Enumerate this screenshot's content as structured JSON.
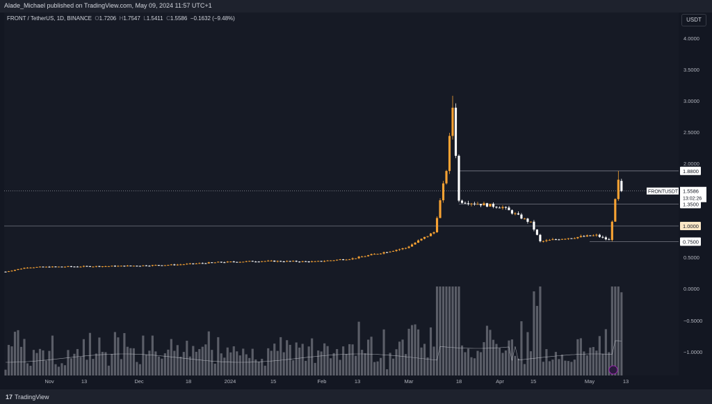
{
  "publisher_line": "Alade_Michael published on TradingView.com, May 09, 2024 11:57 UTC+1",
  "legend": {
    "symbol": "FRONT / TetherUS, 1D, BINANCE",
    "o_label": "O",
    "o": "1.7206",
    "h_label": "H",
    "h": "1.7547",
    "l_label": "L",
    "l": "1.5411",
    "c_label": "C",
    "c": "1.5586",
    "change": "−0.1632 (−9.48%)"
  },
  "currency_button": "USDT",
  "price_axis": {
    "ticks": [
      "4.0000",
      "3.5000",
      "3.0000",
      "2.5000",
      "2.0000",
      "1.5000",
      "1.0000",
      "0.5000"
    ],
    "volume_ticks": [
      "0.0000",
      "−0.5000",
      "−1.0000"
    ]
  },
  "time_axis": [
    "Nov",
    "13",
    "Dec",
    "18",
    "2024",
    "15",
    "Feb",
    "13",
    "Mar",
    "18",
    "Apr",
    "15",
    "May",
    "13"
  ],
  "price_labels": {
    "level_1": "1.8800",
    "symbol_tag": "FRONTUSDT",
    "current": "1.5586",
    "countdown": "13:02:26",
    "level_2": "1.3500",
    "level_3": "1.0000",
    "level_4": "0.7500"
  },
  "footer": {
    "brand": "TradingView"
  },
  "colors": {
    "up": "#f7a233",
    "down": "#ffffff",
    "background": "#161a25",
    "volume": "#9598a1"
  },
  "chart_data": {
    "type": "candlestick",
    "levels": [
      1.88,
      1.35,
      1.0,
      0.75
    ],
    "current_price": 1.5586,
    "ylim": [
      0.0,
      4.2
    ],
    "anchor_points": [
      [
        "Oct 25",
        0.27
      ],
      [
        "Nov 1",
        0.34
      ],
      [
        "Nov 13",
        0.35
      ],
      [
        "Dec 1",
        0.36
      ],
      [
        "Dec 18",
        0.38
      ],
      [
        "Jan 1",
        0.42
      ],
      [
        "Jan 15",
        0.44
      ],
      [
        "Feb 1",
        0.43
      ],
      [
        "Feb 13",
        0.48
      ],
      [
        "Mar 1",
        0.65
      ],
      [
        "Mar 10",
        0.9
      ],
      [
        "Mar 14",
        1.9
      ],
      [
        "Mar 16",
        2.9
      ],
      [
        "Mar 18",
        1.4
      ],
      [
        "Apr 1",
        1.3
      ],
      [
        "Apr 10",
        1.05
      ],
      [
        "Apr 13",
        0.75
      ],
      [
        "Apr 20",
        0.8
      ],
      [
        "May 1",
        0.85
      ],
      [
        "May 5",
        0.77
      ],
      [
        "May 8",
        1.72
      ],
      [
        "May 9",
        1.56
      ]
    ]
  }
}
